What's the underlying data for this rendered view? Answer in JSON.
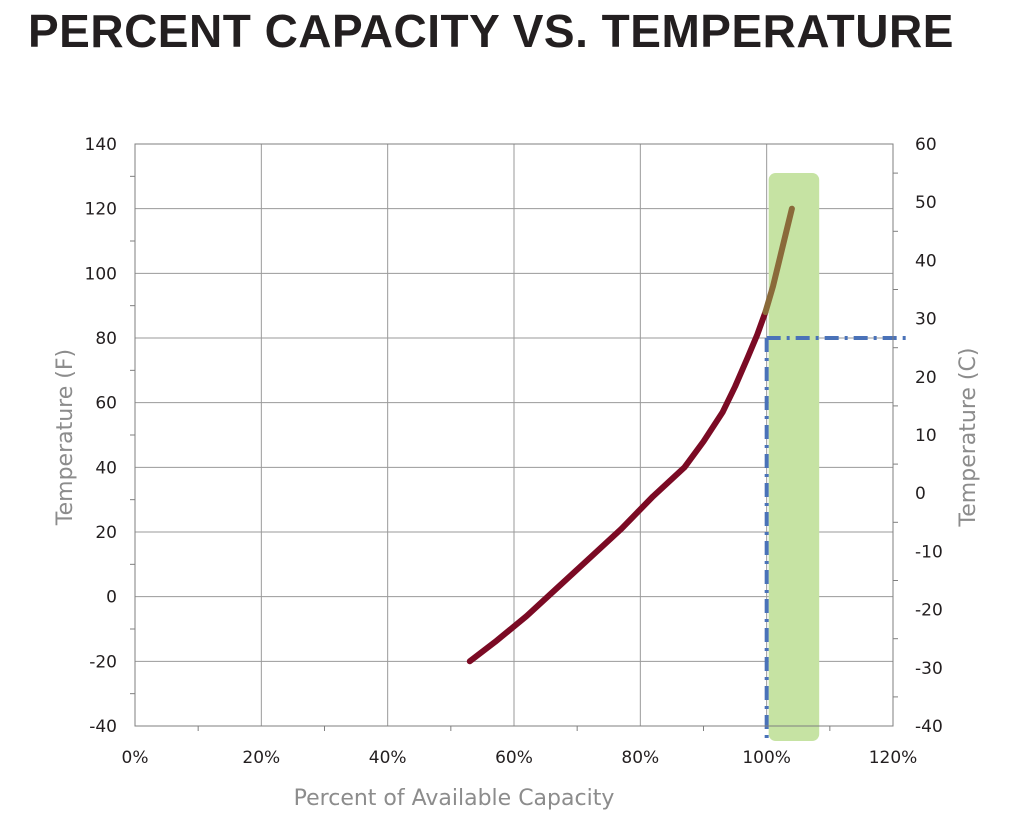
{
  "chart_data": {
    "type": "line",
    "title": "PERCENT CAPACITY VS. TEMPERATURE",
    "xlabel": "Percent of Available Capacity",
    "ylabel": "Temperature (F)",
    "y2label": "Temperature (C)",
    "xlim": [
      0,
      120
    ],
    "ylim": [
      -40,
      140
    ],
    "y2lim": [
      -40,
      60
    ],
    "x_ticks": [
      "0%",
      "20%",
      "40%",
      "60%",
      "80%",
      "100%",
      "120%"
    ],
    "y_ticks": [
      "-40",
      "-20",
      "0",
      "20",
      "40",
      "60",
      "80",
      "100",
      "120",
      "140"
    ],
    "y2_ticks": [
      "-40",
      "-30",
      "-20",
      "-10",
      "0",
      "10",
      "20",
      "30",
      "40",
      "50",
      "60"
    ],
    "grid": true,
    "series": [
      {
        "color": "#7b0a24",
        "x": [
          53,
          57,
          62,
          67,
          72,
          77,
          82,
          87,
          90,
          93,
          95,
          97,
          98.5,
          99.8
        ],
        "y": [
          -20,
          -14,
          -6,
          3,
          12,
          21,
          31,
          40,
          48,
          57,
          65,
          74,
          81,
          88
        ]
      },
      {
        "color": "#8a6a3a",
        "x": [
          99.8,
          101,
          102,
          103,
          104
        ],
        "y": [
          88,
          96,
          104,
          112,
          120
        ]
      }
    ],
    "highlight_band": {
      "x": [
        100,
        108
      ],
      "color": "#c6e3a3"
    },
    "reference": {
      "x": 100,
      "y": 80,
      "color": "#4a72b8"
    }
  }
}
